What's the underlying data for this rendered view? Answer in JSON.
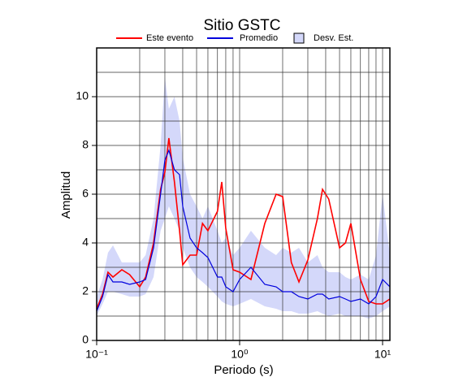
{
  "chart_data": {
    "type": "line",
    "title": "Sitio GSTC",
    "xlabel": "Periodo (s)",
    "ylabel": "Amplitud",
    "xscale": "log",
    "xlim": [
      0.1,
      11.25
    ],
    "ylim": [
      0,
      12
    ],
    "xticks": [
      {
        "value": 0.1,
        "label": "10⁻¹"
      },
      {
        "value": 1,
        "label": "10⁰"
      },
      {
        "value": 10,
        "label": "10¹"
      }
    ],
    "xminor": [
      0.2,
      0.3,
      0.4,
      0.5,
      0.6,
      0.7,
      0.8,
      0.9,
      2,
      3,
      4,
      5,
      6,
      7,
      8,
      9
    ],
    "yticks": [
      0,
      2,
      4,
      6,
      8,
      10
    ],
    "yminor": [
      1,
      3,
      5,
      7,
      9,
      11
    ],
    "grid": true,
    "x": [
      0.1,
      0.11,
      0.12,
      0.13,
      0.15,
      0.17,
      0.2,
      0.22,
      0.25,
      0.28,
      0.3,
      0.32,
      0.35,
      0.38,
      0.4,
      0.45,
      0.5,
      0.55,
      0.6,
      0.7,
      0.75,
      0.8,
      0.9,
      1,
      1.2,
      1.5,
      1.8,
      2,
      2.3,
      2.6,
      3,
      3.5,
      3.8,
      4.2,
      5,
      5.5,
      6,
      7,
      8,
      9,
      10,
      11.25
    ],
    "band": {
      "name": "Desv. Est.",
      "color": "#d4d8fa",
      "lower": [
        1.0,
        1.5,
        2.0,
        2.0,
        1.9,
        1.8,
        1.8,
        1.9,
        2.6,
        4.5,
        5.0,
        5.5,
        5.0,
        4.5,
        3.8,
        3.0,
        2.6,
        2.4,
        2.2,
        1.8,
        1.6,
        1.5,
        1.4,
        1.5,
        1.7,
        1.4,
        1.3,
        1.2,
        1.2,
        1.1,
        1.1,
        1.2,
        1.1,
        1.0,
        1.1,
        1.0,
        1.0,
        1.0,
        0.9,
        1.0,
        1.2,
        1.4
      ],
      "upper": [
        1.8,
        2.5,
        3.6,
        3.9,
        3.2,
        3.2,
        3.2,
        3.5,
        5.0,
        8.0,
        10.8,
        9.5,
        10.0,
        9.0,
        7.5,
        6.0,
        5.5,
        5.0,
        5.5,
        4.5,
        4.0,
        4.2,
        3.5,
        3.8,
        4.5,
        3.8,
        3.5,
        3.8,
        3.6,
        3.8,
        3.2,
        3.5,
        3.0,
        2.8,
        2.8,
        2.6,
        2.5,
        2.7,
        2.5,
        3.5,
        6.0,
        3.5
      ]
    },
    "series": [
      {
        "name": "Este evento",
        "color": "#ff0000",
        "values": [
          1.3,
          1.9,
          2.8,
          2.6,
          2.9,
          2.7,
          2.2,
          2.6,
          4.0,
          6.2,
          6.9,
          8.3,
          6.5,
          4.5,
          3.1,
          3.5,
          3.5,
          4.8,
          4.5,
          5.3,
          6.5,
          4.6,
          2.9,
          2.8,
          2.5,
          4.8,
          6.0,
          5.9,
          3.2,
          2.4,
          3.3,
          5.0,
          6.2,
          5.8,
          3.8,
          4.0,
          4.8,
          2.5,
          1.6,
          1.5,
          1.5,
          1.7
        ]
      },
      {
        "name": "Promedio",
        "color": "#0000dd",
        "values": [
          1.2,
          1.8,
          2.7,
          2.4,
          2.4,
          2.3,
          2.4,
          2.5,
          3.8,
          6.0,
          7.4,
          7.8,
          7.0,
          6.8,
          5.5,
          4.2,
          3.8,
          3.6,
          3.4,
          2.6,
          2.6,
          2.2,
          2.0,
          2.5,
          3.0,
          2.3,
          2.2,
          2.0,
          2.0,
          1.8,
          1.7,
          1.9,
          1.9,
          1.7,
          1.8,
          1.7,
          1.6,
          1.7,
          1.5,
          1.8,
          2.5,
          2.2
        ]
      }
    ]
  }
}
